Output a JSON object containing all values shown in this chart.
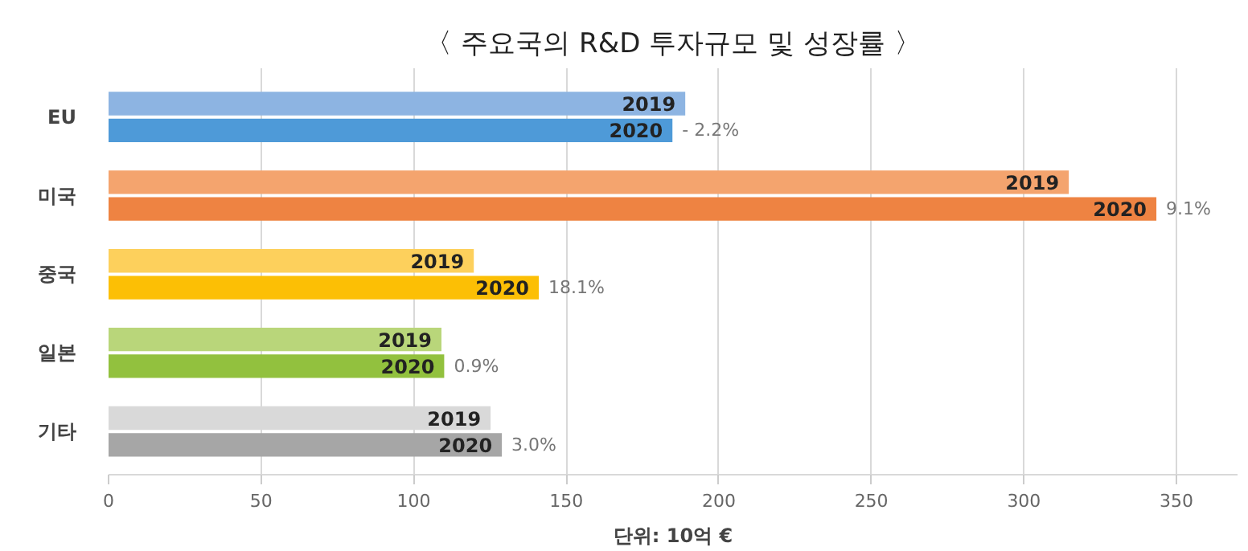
{
  "chart_data": {
    "type": "bar",
    "orientation": "horizontal",
    "title": "〈 주요국의 R&D 투자규모 및 성장률 〉",
    "xlabel": "단위: 10억 €",
    "categories": [
      "EU",
      "미국",
      "중국",
      "일본",
      "기타"
    ],
    "series": [
      {
        "name": "2019",
        "colors": [
          "#8db4e2",
          "#f4a46e",
          "#fdd05c",
          "#b9d67a",
          "#d9d9d9"
        ],
        "values": [
          189,
          314.7,
          119.7,
          109.1,
          125.2
        ]
      },
      {
        "name": "2020",
        "colors": [
          "#4e9ad8",
          "#ee8342",
          "#fcbf05",
          "#92c13e",
          "#a6a6a6"
        ],
        "values": [
          184.8,
          343.4,
          141,
          110,
          128.9
        ]
      }
    ],
    "annotations": [
      {
        "text": "- 2.2%",
        "x": 184.8,
        "y": "EU"
      },
      {
        "text": "9.1%",
        "x": 343.4,
        "y": "미국"
      },
      {
        "text": "18.1%",
        "x": 141,
        "y": "중국"
      },
      {
        "text": "0.9%",
        "x": 110,
        "y": "일본"
      },
      {
        "text": "3.0%",
        "x": 128.9,
        "y": "기타"
      }
    ],
    "xlim": [
      0,
      370
    ],
    "xticks": [
      0,
      50,
      100,
      150,
      200,
      250,
      300,
      350
    ],
    "grid": "x"
  }
}
